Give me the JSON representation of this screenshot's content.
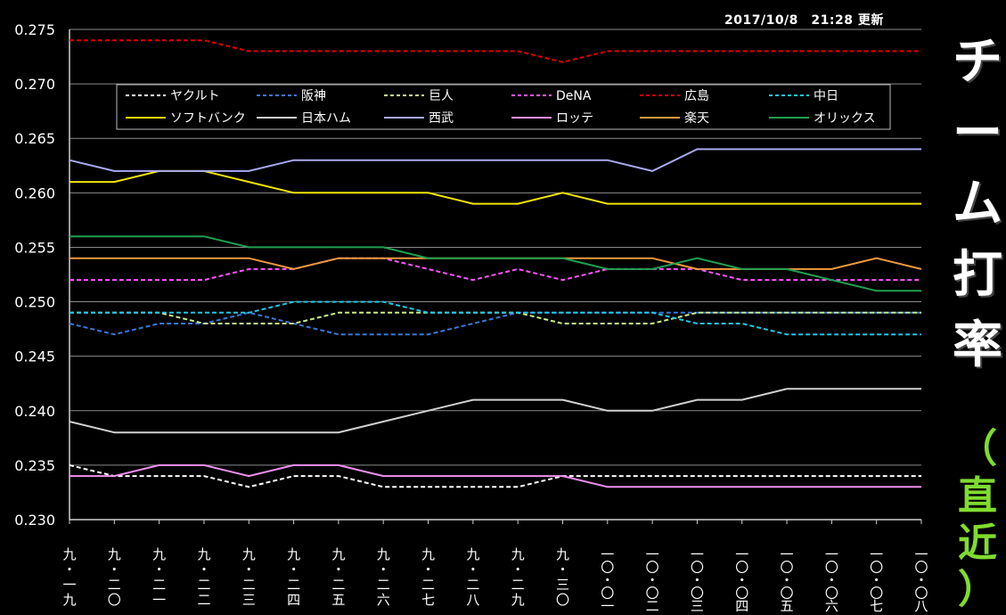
{
  "updated": "2017/10/8　21:28 更新",
  "side_title": [
    "チ",
    "ー",
    "ム",
    "打",
    "率"
  ],
  "side_subtitle": [
    "（",
    "直",
    "近",
    "）"
  ],
  "chart_data": {
    "type": "line",
    "title": "チーム打率（直近）",
    "ylim": [
      0.23,
      0.275
    ],
    "yticks": [
      "0.230",
      "0.235",
      "0.240",
      "0.245",
      "0.250",
      "0.255",
      "0.260",
      "0.265",
      "0.270",
      "0.275"
    ],
    "grid": true,
    "legend_position": "top",
    "categories": [
      [
        "九",
        "・",
        "一",
        "九"
      ],
      [
        "九",
        "・",
        "二",
        "〇"
      ],
      [
        "九",
        "・",
        "二",
        "一"
      ],
      [
        "九",
        "・",
        "二",
        "二"
      ],
      [
        "九",
        "・",
        "二",
        "三"
      ],
      [
        "九",
        "・",
        "二",
        "四"
      ],
      [
        "九",
        "・",
        "二",
        "五"
      ],
      [
        "九",
        "・",
        "二",
        "六"
      ],
      [
        "九",
        "・",
        "二",
        "七"
      ],
      [
        "九",
        "・",
        "二",
        "八"
      ],
      [
        "九",
        "・",
        "二",
        "九"
      ],
      [
        "九",
        "・",
        "三",
        "〇"
      ],
      [
        "一",
        "〇",
        "・",
        "〇",
        "一"
      ],
      [
        "一",
        "〇",
        "・",
        "〇",
        "二"
      ],
      [
        "一",
        "〇",
        "・",
        "〇",
        "三"
      ],
      [
        "一",
        "〇",
        "・",
        "〇",
        "四"
      ],
      [
        "一",
        "〇",
        "・",
        "〇",
        "五"
      ],
      [
        "一",
        "〇",
        "・",
        "〇",
        "六"
      ],
      [
        "一",
        "〇",
        "・",
        "〇",
        "七"
      ],
      [
        "一",
        "〇",
        "・",
        "〇",
        "八"
      ]
    ],
    "series": [
      {
        "name": "ヤクルト",
        "color": "#ffffff",
        "dashed": true,
        "values": [
          0.235,
          0.234,
          0.234,
          0.234,
          0.233,
          0.234,
          0.234,
          0.233,
          0.233,
          0.233,
          0.233,
          0.234,
          0.234,
          0.234,
          0.234,
          0.234,
          0.234,
          0.234,
          0.234,
          0.234
        ]
      },
      {
        "name": "阪神",
        "color": "#3a78d8",
        "dashed": true,
        "values": [
          0.248,
          0.247,
          0.248,
          0.248,
          0.249,
          0.248,
          0.247,
          0.247,
          0.247,
          0.248,
          0.249,
          0.249,
          0.249,
          0.249,
          0.249,
          0.249,
          0.249,
          0.249,
          0.249,
          0.249
        ]
      },
      {
        "name": "巨人",
        "color": "#c8f08c",
        "dashed": true,
        "values": [
          0.249,
          0.249,
          0.249,
          0.248,
          0.248,
          0.248,
          0.249,
          0.249,
          0.249,
          0.249,
          0.249,
          0.248,
          0.248,
          0.248,
          0.249,
          0.249,
          0.249,
          0.249,
          0.249,
          0.249
        ]
      },
      {
        "name": "DeNA",
        "color": "#ff55ff",
        "dashed": true,
        "values": [
          0.252,
          0.252,
          0.252,
          0.252,
          0.253,
          0.253,
          0.254,
          0.254,
          0.253,
          0.252,
          0.253,
          0.252,
          0.253,
          0.253,
          0.253,
          0.252,
          0.252,
          0.252,
          0.252,
          0.252
        ]
      },
      {
        "name": "広島",
        "color": "#e00000",
        "dashed": true,
        "values": [
          0.274,
          0.274,
          0.274,
          0.274,
          0.273,
          0.273,
          0.273,
          0.273,
          0.273,
          0.273,
          0.273,
          0.272,
          0.273,
          0.273,
          0.273,
          0.273,
          0.273,
          0.273,
          0.273,
          0.273
        ]
      },
      {
        "name": "中日",
        "color": "#1ec8e6",
        "dashed": true,
        "values": [
          0.249,
          0.249,
          0.249,
          0.249,
          0.249,
          0.25,
          0.25,
          0.25,
          0.249,
          0.249,
          0.249,
          0.249,
          0.249,
          0.249,
          0.248,
          0.248,
          0.247,
          0.247,
          0.247,
          0.247
        ]
      },
      {
        "name": "ソフトバンク",
        "color": "#f2e600",
        "dashed": false,
        "values": [
          0.261,
          0.261,
          0.262,
          0.262,
          0.261,
          0.26,
          0.26,
          0.26,
          0.26,
          0.259,
          0.259,
          0.26,
          0.259,
          0.259,
          0.259,
          0.259,
          0.259,
          0.259,
          0.259,
          0.259
        ]
      },
      {
        "name": "日本ハム",
        "color": "#d0d0d0",
        "dashed": false,
        "values": [
          0.239,
          0.238,
          0.238,
          0.238,
          0.238,
          0.238,
          0.238,
          0.239,
          0.24,
          0.241,
          0.241,
          0.241,
          0.24,
          0.24,
          0.241,
          0.241,
          0.242,
          0.242,
          0.242,
          0.242
        ]
      },
      {
        "name": "西武",
        "color": "#a9a9f0",
        "dashed": false,
        "values": [
          0.263,
          0.262,
          0.262,
          0.262,
          0.262,
          0.263,
          0.263,
          0.263,
          0.263,
          0.263,
          0.263,
          0.263,
          0.263,
          0.262,
          0.264,
          0.264,
          0.264,
          0.264,
          0.264,
          0.264
        ]
      },
      {
        "name": "ロッテ",
        "color": "#f090f0",
        "dashed": false,
        "values": [
          0.234,
          0.234,
          0.235,
          0.235,
          0.234,
          0.235,
          0.235,
          0.234,
          0.234,
          0.234,
          0.234,
          0.234,
          0.233,
          0.233,
          0.233,
          0.233,
          0.233,
          0.233,
          0.233,
          0.233
        ]
      },
      {
        "name": "楽天",
        "color": "#f09a3c",
        "dashed": false,
        "values": [
          0.254,
          0.254,
          0.254,
          0.254,
          0.254,
          0.253,
          0.254,
          0.254,
          0.254,
          0.254,
          0.254,
          0.254,
          0.254,
          0.254,
          0.253,
          0.253,
          0.253,
          0.253,
          0.254,
          0.253
        ]
      },
      {
        "name": "オリックス",
        "color": "#1ea050",
        "dashed": false,
        "values": [
          0.256,
          0.256,
          0.256,
          0.256,
          0.255,
          0.255,
          0.255,
          0.255,
          0.254,
          0.254,
          0.254,
          0.254,
          0.253,
          0.253,
          0.254,
          0.253,
          0.253,
          0.252,
          0.251,
          0.251
        ]
      }
    ]
  }
}
